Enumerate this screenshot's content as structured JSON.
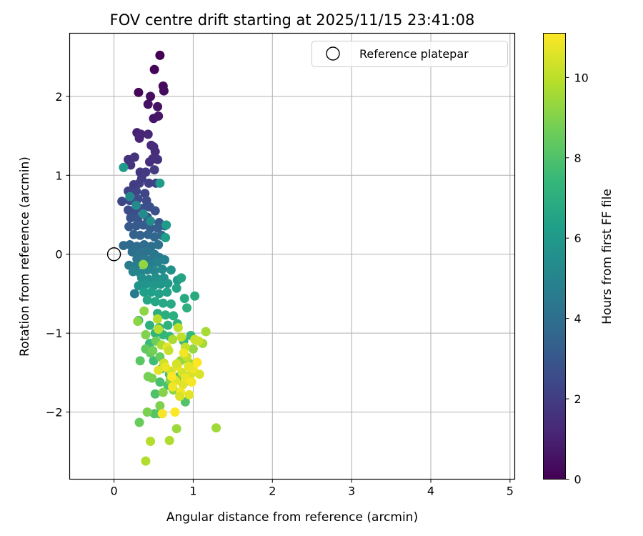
{
  "chart_data": {
    "type": "scatter",
    "title": "FOV centre drift starting at 2025/11/15 23:41:08",
    "xlabel": "Angular distance from reference (arcmin)",
    "ylabel": "Rotation from reference (arcmin)",
    "xlim": [
      -0.56,
      5.06
    ],
    "ylim": [
      -2.85,
      2.8
    ],
    "xticks": [
      0,
      1,
      2,
      3,
      4,
      5
    ],
    "yticks": [
      -2,
      -1,
      0,
      1,
      2
    ],
    "grid": true,
    "legend": {
      "location": "top-right",
      "label": "Reference platepar",
      "marker": "open-circle"
    },
    "reference_point": {
      "x": 0,
      "y": 0
    },
    "colorbar": {
      "label": "Hours from first FF file",
      "colormap": "viridis",
      "range": [
        0,
        11.1
      ],
      "ticks": [
        0,
        2,
        4,
        6,
        8,
        10
      ]
    },
    "points": [
      [
        0.58,
        2.52,
        0.0
      ],
      [
        0.51,
        2.34,
        0.1
      ],
      [
        0.31,
        2.05,
        0.2
      ],
      [
        0.62,
        2.13,
        0.3
      ],
      [
        0.63,
        2.07,
        0.35
      ],
      [
        0.46,
        2.0,
        0.4
      ],
      [
        0.43,
        1.9,
        0.5
      ],
      [
        0.55,
        1.87,
        0.55
      ],
      [
        0.5,
        1.72,
        0.6
      ],
      [
        0.56,
        1.75,
        0.65
      ],
      [
        0.29,
        1.54,
        1.0
      ],
      [
        0.34,
        1.52,
        1.1
      ],
      [
        0.32,
        1.47,
        1.15
      ],
      [
        0.43,
        1.52,
        1.2
      ],
      [
        0.47,
        1.38,
        1.3
      ],
      [
        0.5,
        1.36,
        1.35
      ],
      [
        0.52,
        1.3,
        1.4
      ],
      [
        0.45,
        1.17,
        1.45
      ],
      [
        0.49,
        1.21,
        1.5
      ],
      [
        0.55,
        1.2,
        1.55
      ],
      [
        0.18,
        1.2,
        1.6
      ],
      [
        0.26,
        1.23,
        1.65
      ],
      [
        0.21,
        1.13,
        1.7
      ],
      [
        0.33,
        1.04,
        1.8
      ],
      [
        0.4,
        1.04,
        1.85
      ],
      [
        0.51,
        1.07,
        1.9
      ],
      [
        0.35,
        0.96,
        1.95
      ],
      [
        0.25,
        0.88,
        2.0
      ],
      [
        0.32,
        0.9,
        2.05
      ],
      [
        0.44,
        0.9,
        2.1
      ],
      [
        0.53,
        0.9,
        2.15
      ],
      [
        0.18,
        0.8,
        2.2
      ],
      [
        0.28,
        0.8,
        2.25
      ],
      [
        0.39,
        0.77,
        2.3
      ],
      [
        0.1,
        0.67,
        2.4
      ],
      [
        0.2,
        0.68,
        2.45
      ],
      [
        0.3,
        0.7,
        2.5
      ],
      [
        0.41,
        0.68,
        2.55
      ],
      [
        0.18,
        0.56,
        2.6
      ],
      [
        0.26,
        0.55,
        2.65
      ],
      [
        0.36,
        0.58,
        2.7
      ],
      [
        0.45,
        0.6,
        2.75
      ],
      [
        0.52,
        0.55,
        2.8
      ],
      [
        0.21,
        0.46,
        2.9
      ],
      [
        0.3,
        0.45,
        2.95
      ],
      [
        0.42,
        0.47,
        3.0
      ],
      [
        0.57,
        0.4,
        3.05
      ],
      [
        0.19,
        0.35,
        3.1
      ],
      [
        0.28,
        0.36,
        3.15
      ],
      [
        0.37,
        0.37,
        3.2
      ],
      [
        0.46,
        0.33,
        3.3
      ],
      [
        0.55,
        0.33,
        3.35
      ],
      [
        0.64,
        0.36,
        3.4
      ],
      [
        0.25,
        0.25,
        3.5
      ],
      [
        0.33,
        0.24,
        3.55
      ],
      [
        0.43,
        0.25,
        3.6
      ],
      [
        0.51,
        0.22,
        3.65
      ],
      [
        0.6,
        0.24,
        3.7
      ],
      [
        0.12,
        0.11,
        3.8
      ],
      [
        0.2,
        0.12,
        3.85
      ],
      [
        0.29,
        0.1,
        3.9
      ],
      [
        0.38,
        0.12,
        3.95
      ],
      [
        0.47,
        0.1,
        4.0
      ],
      [
        0.56,
        0.12,
        4.05
      ],
      [
        0.23,
        0.03,
        4.1
      ],
      [
        0.32,
        0.02,
        4.2
      ],
      [
        0.42,
        0.04,
        4.25
      ],
      [
        0.51,
        0.0,
        4.3
      ],
      [
        0.29,
        -0.06,
        4.35
      ],
      [
        0.38,
        -0.05,
        4.4
      ],
      [
        0.48,
        -0.06,
        4.45
      ],
      [
        0.57,
        -0.04,
        4.5
      ],
      [
        0.26,
        -0.5,
        4.55
      ],
      [
        0.19,
        -0.14,
        4.6
      ],
      [
        0.28,
        -0.14,
        4.7
      ],
      [
        0.37,
        -0.12,
        4.75
      ],
      [
        0.46,
        -0.13,
        4.8
      ],
      [
        0.55,
        -0.1,
        4.85
      ],
      [
        0.64,
        -0.07,
        4.9
      ],
      [
        0.24,
        -0.22,
        5.0
      ],
      [
        0.33,
        -0.24,
        5.05
      ],
      [
        0.42,
        -0.2,
        5.1
      ],
      [
        0.51,
        -0.21,
        5.15
      ],
      [
        0.61,
        -0.19,
        5.2
      ],
      [
        0.2,
        0.73,
        5.25
      ],
      [
        0.28,
        0.62,
        5.3
      ],
      [
        0.37,
        0.51,
        5.35
      ],
      [
        0.46,
        0.42,
        5.4
      ],
      [
        0.35,
        -0.3,
        5.45
      ],
      [
        0.44,
        -0.32,
        5.5
      ],
      [
        0.53,
        -0.3,
        5.55
      ],
      [
        0.63,
        -0.3,
        5.6
      ],
      [
        0.72,
        -0.2,
        5.65
      ],
      [
        0.31,
        -0.4,
        5.7
      ],
      [
        0.4,
        -0.38,
        5.75
      ],
      [
        0.5,
        -0.4,
        5.8
      ],
      [
        0.59,
        -0.38,
        5.85
      ],
      [
        0.68,
        -0.37,
        5.9
      ],
      [
        0.8,
        -0.33,
        5.95
      ],
      [
        0.12,
        1.1,
        6.0
      ],
      [
        0.58,
        0.9,
        6.05
      ],
      [
        0.66,
        0.37,
        6.1
      ],
      [
        0.65,
        0.21,
        6.15
      ],
      [
        0.38,
        -0.48,
        6.2
      ],
      [
        0.47,
        -0.48,
        6.25
      ],
      [
        0.57,
        -0.5,
        6.3
      ],
      [
        0.67,
        -0.48,
        6.35
      ],
      [
        0.79,
        -0.43,
        6.4
      ],
      [
        0.85,
        -0.3,
        6.45
      ],
      [
        0.42,
        -0.58,
        6.5
      ],
      [
        0.52,
        -0.6,
        6.55
      ],
      [
        0.62,
        -0.62,
        6.6
      ],
      [
        0.72,
        -0.63,
        6.65
      ],
      [
        0.89,
        -0.56,
        6.7
      ],
      [
        1.02,
        -0.53,
        6.75
      ],
      [
        0.31,
        -0.84,
        6.8
      ],
      [
        0.55,
        -0.75,
        6.85
      ],
      [
        0.65,
        -0.77,
        6.9
      ],
      [
        0.75,
        -0.78,
        6.95
      ],
      [
        0.92,
        -0.68,
        7.0
      ],
      [
        0.45,
        -0.9,
        7.05
      ],
      [
        0.57,
        -0.93,
        7.1
      ],
      [
        0.68,
        -0.9,
        7.15
      ],
      [
        0.8,
        -0.88,
        7.2
      ],
      [
        0.52,
        -1.0,
        7.25
      ],
      [
        0.62,
        -1.02,
        7.3
      ],
      [
        0.7,
        -1.04,
        7.35
      ],
      [
        0.97,
        -1.03,
        7.4
      ],
      [
        0.88,
        -1.1,
        7.45
      ],
      [
        0.45,
        -1.13,
        7.5
      ],
      [
        0.5,
        -1.35,
        7.6
      ],
      [
        0.6,
        -1.45,
        7.65
      ],
      [
        0.7,
        -1.52,
        7.7
      ],
      [
        0.82,
        -1.55,
        7.75
      ],
      [
        0.93,
        -1.6,
        7.8
      ],
      [
        0.58,
        -1.62,
        7.85
      ],
      [
        0.68,
        -1.66,
        7.9
      ],
      [
        0.52,
        -1.77,
        7.95
      ],
      [
        0.9,
        -1.87,
        8.0
      ],
      [
        0.51,
        -2.02,
        8.05
      ],
      [
        0.57,
        -2.02,
        8.1
      ],
      [
        0.33,
        -1.35,
        8.2
      ],
      [
        0.4,
        -1.2,
        8.3
      ],
      [
        0.46,
        -1.25,
        8.4
      ],
      [
        0.58,
        -1.3,
        8.45
      ],
      [
        0.32,
        -2.13,
        8.5
      ],
      [
        0.53,
        -1.1,
        8.6
      ],
      [
        0.49,
        -1.22,
        8.7
      ],
      [
        0.43,
        -1.55,
        8.75
      ],
      [
        0.48,
        -1.57,
        8.8
      ],
      [
        0.42,
        -2.0,
        8.85
      ],
      [
        0.58,
        -1.92,
        8.9
      ],
      [
        0.4,
        -1.02,
        8.95
      ],
      [
        0.71,
        -1.6,
        9.0
      ],
      [
        0.62,
        -1.75,
        9.05
      ],
      [
        0.75,
        -1.72,
        9.1
      ],
      [
        0.3,
        -0.85,
        9.15
      ],
      [
        0.38,
        -0.72,
        9.2
      ],
      [
        0.37,
        -0.13,
        9.25
      ],
      [
        1.0,
        -1.2,
        9.3
      ],
      [
        0.84,
        -1.35,
        9.35
      ],
      [
        0.95,
        -1.38,
        9.4
      ],
      [
        0.79,
        -2.21,
        9.45
      ],
      [
        1.29,
        -2.2,
        9.5
      ],
      [
        1.12,
        -1.13,
        9.55
      ],
      [
        1.16,
        -0.98,
        9.6
      ],
      [
        0.74,
        -1.08,
        9.65
      ],
      [
        0.6,
        -1.15,
        9.7
      ],
      [
        0.7,
        -2.36,
        9.75
      ],
      [
        0.4,
        -2.62,
        9.8
      ],
      [
        0.46,
        -2.37,
        9.85
      ],
      [
        0.55,
        -0.82,
        9.9
      ],
      [
        0.56,
        -0.95,
        9.95
      ],
      [
        0.81,
        -0.93,
        10.0
      ],
      [
        0.85,
        -1.05,
        10.05
      ],
      [
        0.9,
        -1.18,
        10.1
      ],
      [
        0.92,
        -1.3,
        10.15
      ],
      [
        1.02,
        -1.08,
        10.2
      ],
      [
        1.07,
        -1.1,
        10.25
      ],
      [
        0.63,
        -1.38,
        10.3
      ],
      [
        0.72,
        -1.48,
        10.35
      ],
      [
        0.86,
        -1.5,
        10.4
      ],
      [
        0.97,
        -1.52,
        10.45
      ],
      [
        1.08,
        -1.52,
        10.5
      ],
      [
        0.78,
        -1.6,
        10.55
      ],
      [
        0.87,
        -1.65,
        10.6
      ],
      [
        0.95,
        -1.78,
        10.65
      ],
      [
        0.67,
        -1.18,
        10.7
      ],
      [
        0.8,
        -1.42,
        10.75
      ],
      [
        0.9,
        -1.57,
        10.8
      ],
      [
        1.0,
        -1.45,
        10.85
      ],
      [
        0.74,
        -1.68,
        10.9
      ],
      [
        0.84,
        -1.75,
        10.95
      ],
      [
        0.61,
        -2.02,
        11.0
      ],
      [
        0.77,
        -2.0,
        11.05
      ],
      [
        1.05,
        -1.37,
        11.1
      ],
      [
        0.65,
        -1.43,
        10.8
      ],
      [
        0.56,
        -1.47,
        10.6
      ],
      [
        0.79,
        -1.39,
        10.4
      ],
      [
        0.98,
        -1.62,
        11.0
      ],
      [
        0.69,
        -1.22,
        10.2
      ],
      [
        0.88,
        -1.25,
        10.9
      ],
      [
        0.94,
        -1.42,
        10.7
      ],
      [
        0.83,
        -1.8,
        10.5
      ],
      [
        0.73,
        -1.55,
        11.1
      ]
    ]
  }
}
